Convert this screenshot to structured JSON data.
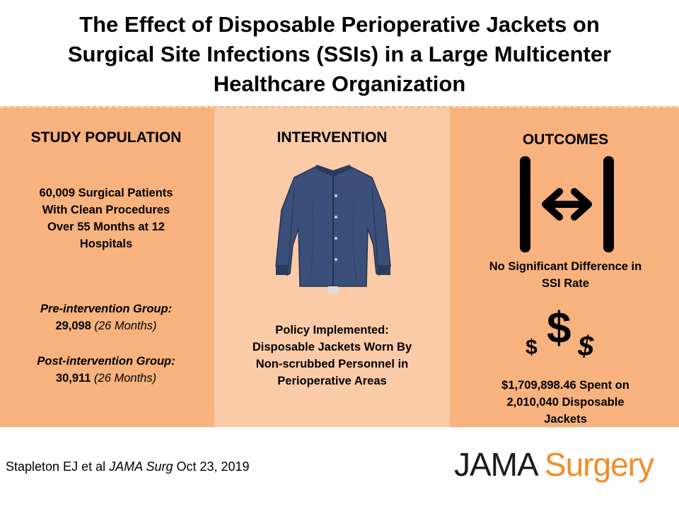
{
  "title": {
    "line1": "The Effect of Disposable Perioperative Jackets on",
    "line2": "Surgical Site Infections (SSIs) in a Large Multicenter",
    "line3": "Healthcare Organization"
  },
  "study_population": {
    "heading": "STUDY POPULATION",
    "summary_lines": [
      "60,009 Surgical Patients",
      "With Clean Procedures",
      "Over 55 Months at 12",
      "Hospitals"
    ],
    "pre_label": "Pre-intervention Group:",
    "pre_count": "29,098",
    "pre_duration": "(26 Months)",
    "post_label": "Post-intervention Group:",
    "post_count": "30,911",
    "post_duration": "(26 Months)"
  },
  "intervention": {
    "heading": "INTERVENTION",
    "image_icon": "jacket-icon",
    "policy_lines": [
      "Policy Implemented:",
      "Disposable Jackets Worn By",
      "Non-scrubbed Personnel in",
      "Perioperative Areas"
    ]
  },
  "outcomes": {
    "heading": "OUTCOMES",
    "difference_icon": "no-difference-arrows-icon",
    "difference_lines": [
      "No Significant Difference in",
      "SSI Rate"
    ],
    "cost_icon": "dollar-signs-icon",
    "cost_lines": [
      "$1,709,898.46 Spent on",
      "2,010,040 Disposable",
      "Jackets"
    ]
  },
  "footer": {
    "citation_authors": "Stapleton EJ et al",
    "citation_journal": "JAMA Surg",
    "citation_date": "Oct 23, 2019",
    "logo_jama": "JAMA",
    "logo_surgery": "Surgery"
  },
  "colors": {
    "band": "#F7B27D",
    "middle_panel": "#FBCBA7",
    "logo_accent": "#F28C28",
    "jacket": "#3A4F7A"
  }
}
